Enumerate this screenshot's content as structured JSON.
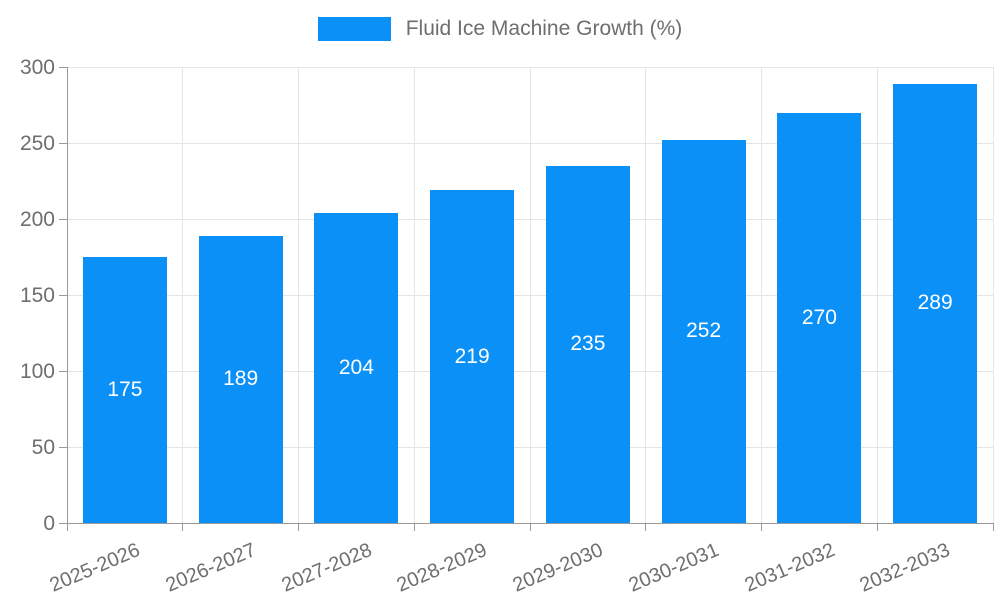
{
  "chart_data": {
    "type": "bar",
    "title": "",
    "legend_position": "top",
    "categories": [
      "2025-2026",
      "2026-2027",
      "2027-2028",
      "2028-2029",
      "2029-2030",
      "2030-2031",
      "2031-2032",
      "2032-2033"
    ],
    "series": [
      {
        "name": "Fluid Ice Machine Growth (%)",
        "values": [
          175,
          189,
          204,
          219,
          235,
          252,
          270,
          289
        ]
      }
    ],
    "xlabel": "",
    "ylabel": "",
    "ylim": [
      0,
      300
    ],
    "yticks": [
      0,
      50,
      100,
      150,
      200,
      250,
      300
    ],
    "grid": true,
    "value_labels_shown": true,
    "colors": {
      "bar": "#0b90f7",
      "grid": "#e5e5e5",
      "axis": "#999999",
      "tick_text": "#6e6e6e",
      "value_label": "#ffffff",
      "background": "#ffffff"
    }
  }
}
